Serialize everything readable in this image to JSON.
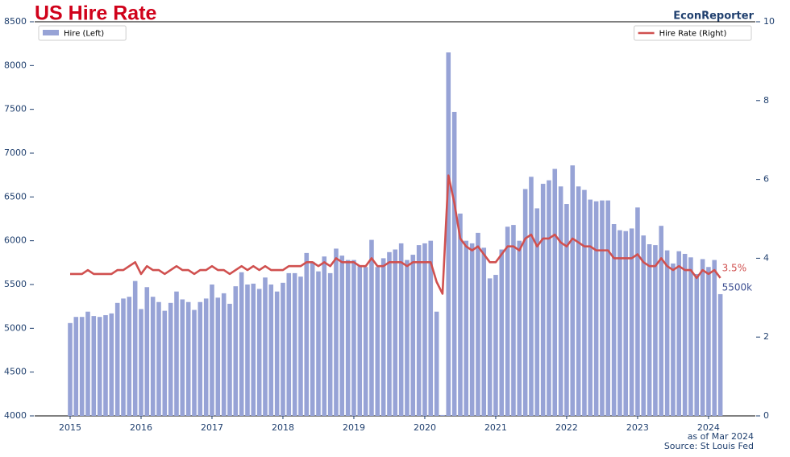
{
  "chart_data": {
    "type": "bar",
    "title": "US Hire Rate",
    "brand": "EconReporter",
    "footer": [
      "as of Mar 2024",
      "Source: St Louis Fed"
    ],
    "annotations": [
      "3.5%",
      "5500k"
    ],
    "x": [
      2015,
      2015.083,
      2015.167,
      2015.25,
      2015.333,
      2015.417,
      2015.5,
      2015.583,
      2015.667,
      2015.75,
      2015.833,
      2015.917,
      2016,
      2016.083,
      2016.167,
      2016.25,
      2016.333,
      2016.417,
      2016.5,
      2016.583,
      2016.667,
      2016.75,
      2016.833,
      2016.917,
      2017,
      2017.083,
      2017.167,
      2017.25,
      2017.333,
      2017.417,
      2017.5,
      2017.583,
      2017.667,
      2017.75,
      2017.833,
      2017.917,
      2018,
      2018.083,
      2018.167,
      2018.25,
      2018.333,
      2018.417,
      2018.5,
      2018.583,
      2018.667,
      2018.75,
      2018.833,
      2018.917,
      2019,
      2019.083,
      2019.167,
      2019.25,
      2019.333,
      2019.417,
      2019.5,
      2019.583,
      2019.667,
      2019.75,
      2019.833,
      2019.917,
      2020,
      2020.083,
      2020.167,
      2020.25,
      2020.333,
      2020.417,
      2020.5,
      2020.583,
      2020.667,
      2020.75,
      2020.833,
      2020.917,
      2021,
      2021.083,
      2021.167,
      2021.25,
      2021.333,
      2021.417,
      2021.5,
      2021.583,
      2021.667,
      2021.75,
      2021.833,
      2021.917,
      2022,
      2022.083,
      2022.167,
      2022.25,
      2022.333,
      2022.417,
      2022.5,
      2022.583,
      2022.667,
      2022.75,
      2022.833,
      2022.917,
      2023,
      2023.083,
      2023.167,
      2023.25,
      2023.333,
      2023.417,
      2023.5,
      2023.583,
      2023.667,
      2023.75,
      2023.833,
      2023.917,
      2024,
      2024.083,
      2024.167
    ],
    "series": [
      {
        "name": "Hire (Left)",
        "type": "bar",
        "color": "#97a3d6",
        "legend": "upper left",
        "values": [
          5060,
          5130,
          5130,
          5190,
          5140,
          5130,
          5150,
          5170,
          5290,
          5340,
          5360,
          5540,
          5220,
          5470,
          5360,
          5300,
          5200,
          5290,
          5420,
          5330,
          5300,
          5210,
          5300,
          5340,
          5500,
          5350,
          5400,
          5280,
          5480,
          5640,
          5500,
          5510,
          5450,
          5580,
          5500,
          5420,
          5520,
          5630,
          5630,
          5590,
          5860,
          5760,
          5650,
          5820,
          5630,
          5910,
          5830,
          5780,
          5780,
          5720,
          5700,
          6010,
          5700,
          5800,
          5870,
          5900,
          5970,
          5780,
          5840,
          5950,
          5970,
          6000,
          5190,
          4010,
          8150,
          7470,
          6310,
          6000,
          5970,
          6090,
          5920,
          5570,
          5610,
          5900,
          6160,
          6180,
          6000,
          6590,
          6730,
          6370,
          6650,
          6690,
          6820,
          6620,
          6420,
          6860,
          6620,
          6580,
          6470,
          6450,
          6460,
          6460,
          6190,
          6120,
          6110,
          6140,
          6380,
          6060,
          5960,
          5950,
          6170,
          5890,
          5740,
          5880,
          5850,
          5810,
          5620,
          5790,
          5700,
          5780,
          5390
        ]
      },
      {
        "name": "Hire Rate (Right)",
        "type": "line",
        "axis": "y2",
        "color": "#d0504f",
        "legend": "upper right",
        "values": [
          3.6,
          3.6,
          3.6,
          3.7,
          3.6,
          3.6,
          3.6,
          3.6,
          3.7,
          3.7,
          3.8,
          3.9,
          3.6,
          3.8,
          3.7,
          3.7,
          3.6,
          3.7,
          3.8,
          3.7,
          3.7,
          3.6,
          3.7,
          3.7,
          3.8,
          3.7,
          3.7,
          3.6,
          3.7,
          3.8,
          3.7,
          3.8,
          3.7,
          3.8,
          3.7,
          3.7,
          3.7,
          3.8,
          3.8,
          3.8,
          3.9,
          3.9,
          3.8,
          3.9,
          3.8,
          4.0,
          3.9,
          3.9,
          3.9,
          3.8,
          3.8,
          4.0,
          3.8,
          3.8,
          3.9,
          3.9,
          3.9,
          3.8,
          3.9,
          3.9,
          3.9,
          3.9,
          3.4,
          3.1,
          6.1,
          5.4,
          4.5,
          4.3,
          4.2,
          4.3,
          4.1,
          3.9,
          3.9,
          4.1,
          4.3,
          4.3,
          4.2,
          4.5,
          4.6,
          4.3,
          4.5,
          4.5,
          4.6,
          4.4,
          4.3,
          4.5,
          4.4,
          4.3,
          4.3,
          4.2,
          4.2,
          4.2,
          4.0,
          4.0,
          4.0,
          4.0,
          4.1,
          3.9,
          3.8,
          3.8,
          4.0,
          3.8,
          3.7,
          3.8,
          3.7,
          3.7,
          3.5,
          3.7,
          3.6,
          3.7,
          3.5
        ]
      }
    ],
    "xlim": [
      2014.5,
      2024.66
    ],
    "xticks": [
      2015,
      2016,
      2017,
      2018,
      2019,
      2020,
      2021,
      2022,
      2023,
      2024
    ],
    "ylim": [
      4000,
      8500
    ],
    "yticks": [
      4000,
      4500,
      5000,
      5500,
      6000,
      6500,
      7000,
      7500,
      8000,
      8500
    ],
    "y2lim": [
      0,
      10
    ],
    "y2ticks": [
      0,
      2,
      4,
      6,
      8,
      10
    ]
  }
}
